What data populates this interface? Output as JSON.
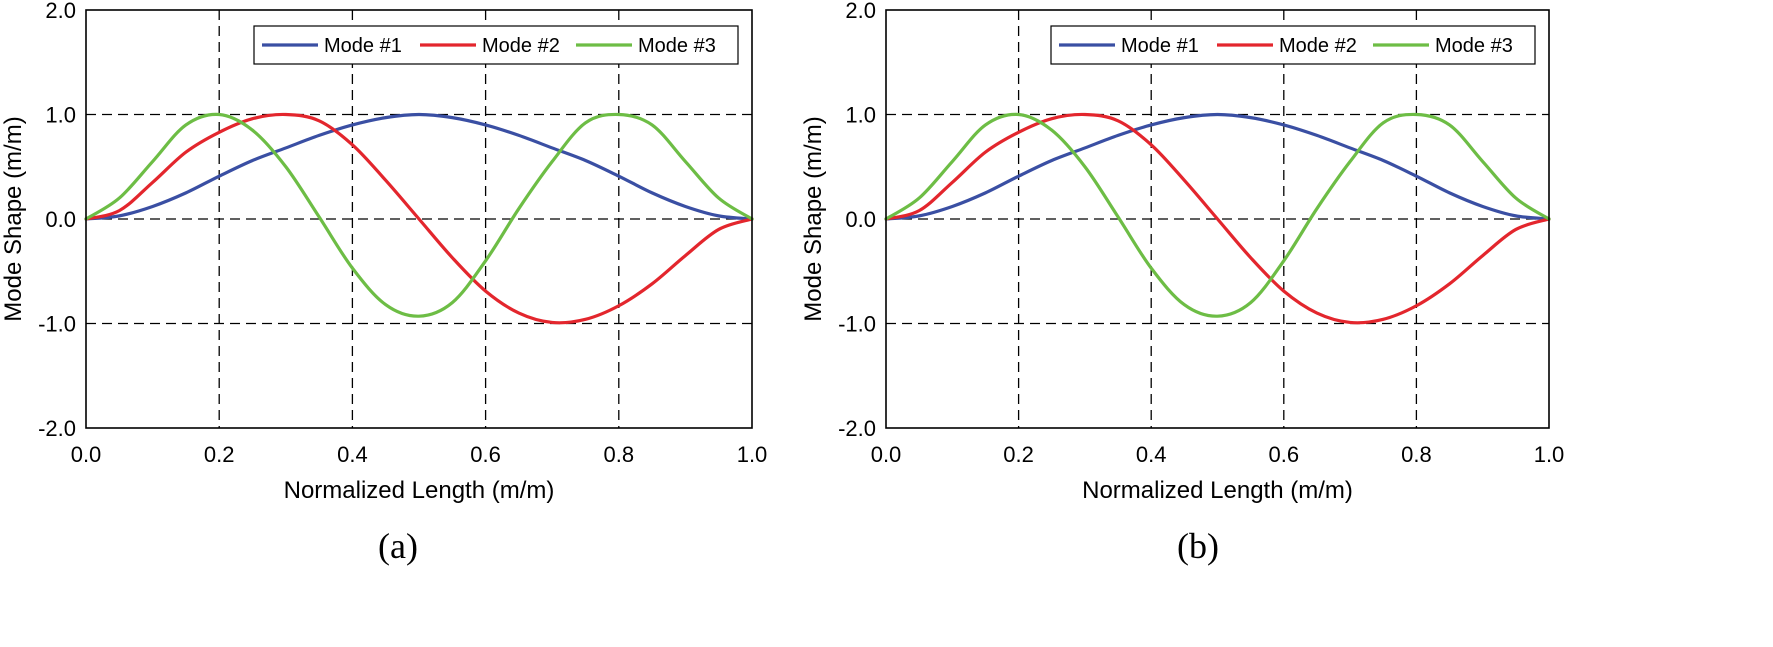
{
  "colors": {
    "mode1": "#3a4fa3",
    "mode2": "#e3262d",
    "mode3": "#6dbd45",
    "grid": "#000000",
    "axis": "#000000"
  },
  "chart_data": [
    {
      "type": "line",
      "panel_label": "(a)",
      "title": "",
      "xlabel": "Normalized Length (m/m)",
      "ylabel": "Mode Shape (m/m)",
      "xlim": [
        0.0,
        1.0
      ],
      "ylim": [
        -2.0,
        2.0
      ],
      "xticks": [
        0.0,
        0.2,
        0.4,
        0.6,
        0.8,
        1.0
      ],
      "xtick_labels": [
        "0.0",
        "0.2",
        "0.4",
        "0.6",
        "0.8",
        "1.0"
      ],
      "yticks": [
        2.0,
        1.0,
        0.0,
        -1.0,
        -2.0
      ],
      "ytick_labels": [
        "2.0",
        "1.0",
        "0.0",
        "-1.0",
        "-2.0"
      ],
      "grid": "dashed",
      "legend_position": "top-right",
      "x": [
        0.0,
        0.05,
        0.1,
        0.15,
        0.2,
        0.25,
        0.3,
        0.35,
        0.4,
        0.45,
        0.5,
        0.55,
        0.6,
        0.65,
        0.7,
        0.75,
        0.8,
        0.85,
        0.9,
        0.95,
        1.0
      ],
      "series": [
        {
          "name": "Mode #1",
          "values": [
            0.0,
            0.03,
            0.12,
            0.25,
            0.41,
            0.56,
            0.68,
            0.8,
            0.9,
            0.97,
            1.0,
            0.97,
            0.9,
            0.8,
            0.68,
            0.56,
            0.41,
            0.25,
            0.12,
            0.03,
            0.0
          ]
        },
        {
          "name": "Mode #2",
          "values": [
            0.0,
            0.08,
            0.35,
            0.64,
            0.83,
            0.96,
            1.0,
            0.94,
            0.71,
            0.37,
            0.0,
            -0.37,
            -0.69,
            -0.9,
            -0.99,
            -0.96,
            -0.83,
            -0.62,
            -0.35,
            -0.1,
            0.0
          ]
        },
        {
          "name": "Mode #3",
          "values": [
            0.0,
            0.2,
            0.55,
            0.9,
            1.0,
            0.85,
            0.5,
            0.02,
            -0.47,
            -0.82,
            -0.93,
            -0.8,
            -0.4,
            0.1,
            0.55,
            0.92,
            1.0,
            0.9,
            0.55,
            0.2,
            0.0
          ]
        }
      ]
    },
    {
      "type": "line",
      "panel_label": "(b)",
      "title": "",
      "xlabel": "Normalized Length (m/m)",
      "ylabel": "Mode Shape (m/m)",
      "xlim": [
        0.0,
        1.0
      ],
      "ylim": [
        -2.0,
        2.0
      ],
      "xticks": [
        0.0,
        0.2,
        0.4,
        0.6,
        0.8,
        1.0
      ],
      "xtick_labels": [
        "0.0",
        "0.2",
        "0.4",
        "0.6",
        "0.8",
        "1.0"
      ],
      "yticks": [
        2.0,
        1.0,
        0.0,
        -1.0,
        -2.0
      ],
      "ytick_labels": [
        "2.0",
        "1.0",
        "0.0",
        "-1.0",
        "-2.0"
      ],
      "grid": "dashed",
      "legend_position": "top-right",
      "x": [
        0.0,
        0.05,
        0.1,
        0.15,
        0.2,
        0.25,
        0.3,
        0.35,
        0.4,
        0.45,
        0.5,
        0.55,
        0.6,
        0.65,
        0.7,
        0.75,
        0.8,
        0.85,
        0.9,
        0.95,
        1.0
      ],
      "series": [
        {
          "name": "Mode #1",
          "values": [
            0.0,
            0.03,
            0.12,
            0.25,
            0.41,
            0.56,
            0.68,
            0.8,
            0.9,
            0.97,
            1.0,
            0.97,
            0.9,
            0.8,
            0.68,
            0.56,
            0.41,
            0.25,
            0.12,
            0.03,
            0.0
          ]
        },
        {
          "name": "Mode #2",
          "values": [
            0.0,
            0.08,
            0.35,
            0.64,
            0.83,
            0.96,
            1.0,
            0.94,
            0.71,
            0.37,
            0.0,
            -0.37,
            -0.69,
            -0.9,
            -0.99,
            -0.96,
            -0.83,
            -0.62,
            -0.35,
            -0.1,
            0.0
          ]
        },
        {
          "name": "Mode #3",
          "values": [
            0.0,
            0.2,
            0.55,
            0.9,
            1.0,
            0.85,
            0.5,
            0.02,
            -0.47,
            -0.82,
            -0.93,
            -0.8,
            -0.4,
            0.1,
            0.55,
            0.92,
            1.0,
            0.9,
            0.55,
            0.2,
            0.0
          ]
        }
      ]
    }
  ]
}
